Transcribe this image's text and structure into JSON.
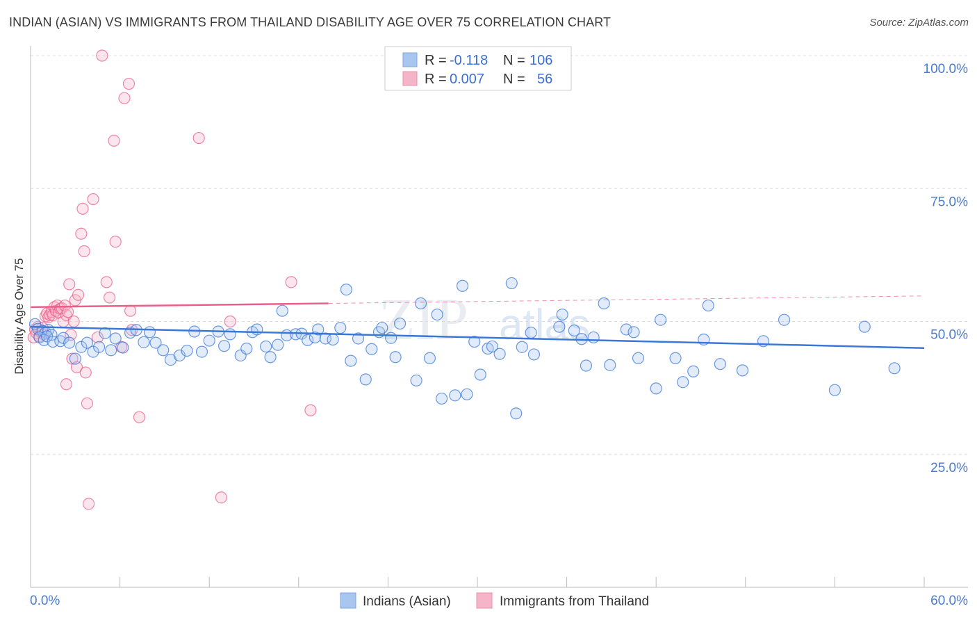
{
  "title": "INDIAN (ASIAN) VS IMMIGRANTS FROM THAILAND DISABILITY AGE OVER 75 CORRELATION CHART",
  "source": "Source: ZipAtlas.com",
  "watermark": "ZIPatlas",
  "colors": {
    "blue": "#3a78d8",
    "blue_fill": "#a9c6f0",
    "pink": "#e8608a",
    "pink_fill": "#f5b5c8",
    "tick_text": "#4a7bd0",
    "grid": "#dcdcdc"
  },
  "legend": {
    "row1": {
      "r_label": "R =",
      "r_value": "-0.118",
      "n_label": "N =",
      "n_value": "106"
    },
    "row2": {
      "r_label": "R =",
      "r_value": "0.007",
      "n_label": "N =",
      "n_value": "56"
    }
  },
  "bottom_legend": {
    "series1": "Indians (Asian)",
    "series2": "Immigrants from Thailand"
  },
  "chart_data": {
    "type": "scatter",
    "title": "INDIAN (ASIAN) VS IMMIGRANTS FROM THAILAND DISABILITY AGE OVER 75 CORRELATION CHART",
    "xlabel": "",
    "ylabel": "Disability Age Over 75",
    "xlim": [
      0,
      60
    ],
    "ylim": [
      0,
      100
    ],
    "x_tick_labels": [
      "0.0%",
      "60.0%"
    ],
    "y_ticks": [
      25,
      50,
      75,
      100
    ],
    "y_tick_labels": [
      "25.0%",
      "50.0%",
      "75.0%",
      "100.0%"
    ],
    "grid": true,
    "series": [
      {
        "name": "Indians (Asian)",
        "r": -0.118,
        "n": 106,
        "trend": {
          "x": [
            0,
            60
          ],
          "y": [
            49.0,
            45.0
          ]
        },
        "points": [
          [
            0.3,
            49.5
          ],
          [
            0.5,
            48.6
          ],
          [
            0.8,
            48.2
          ],
          [
            1.0,
            47.9
          ],
          [
            1.2,
            48.4
          ],
          [
            1.4,
            47.5
          ],
          [
            0.6,
            47.0
          ],
          [
            0.9,
            46.5
          ],
          [
            1.1,
            47.2
          ],
          [
            1.5,
            46.2
          ],
          [
            2.0,
            46.3
          ],
          [
            2.2,
            46.9
          ],
          [
            2.6,
            46.0
          ],
          [
            3.0,
            43.0
          ],
          [
            3.4,
            45.2
          ],
          [
            3.8,
            46.0
          ],
          [
            4.2,
            44.3
          ],
          [
            4.6,
            45.2
          ],
          [
            5.0,
            47.8
          ],
          [
            5.4,
            44.6
          ],
          [
            5.7,
            46.8
          ],
          [
            6.2,
            45.1
          ],
          [
            6.7,
            47.9
          ],
          [
            7.1,
            48.4
          ],
          [
            7.6,
            46.1
          ],
          [
            8.0,
            48.0
          ],
          [
            8.4,
            46.0
          ],
          [
            8.9,
            44.6
          ],
          [
            9.4,
            42.8
          ],
          [
            10.0,
            43.6
          ],
          [
            10.5,
            44.5
          ],
          [
            11.0,
            48.1
          ],
          [
            11.5,
            44.3
          ],
          [
            12.0,
            46.4
          ],
          [
            12.6,
            48.1
          ],
          [
            13.0,
            45.4
          ],
          [
            13.4,
            47.6
          ],
          [
            14.1,
            43.6
          ],
          [
            14.5,
            44.9
          ],
          [
            14.9,
            48.0
          ],
          [
            15.2,
            48.5
          ],
          [
            15.8,
            45.3
          ],
          [
            16.1,
            43.3
          ],
          [
            16.6,
            45.6
          ],
          [
            16.9,
            52.0
          ],
          [
            17.2,
            47.4
          ],
          [
            17.8,
            47.6
          ],
          [
            18.2,
            47.7
          ],
          [
            18.6,
            46.5
          ],
          [
            19.1,
            47.0
          ],
          [
            19.3,
            48.5
          ],
          [
            19.8,
            46.8
          ],
          [
            20.3,
            46.6
          ],
          [
            20.8,
            48.8
          ],
          [
            21.2,
            56.0
          ],
          [
            21.5,
            42.6
          ],
          [
            22.0,
            46.8
          ],
          [
            22.5,
            39.1
          ],
          [
            22.9,
            44.8
          ],
          [
            23.4,
            48.0
          ],
          [
            23.6,
            48.8
          ],
          [
            24.2,
            46.9
          ],
          [
            24.5,
            43.3
          ],
          [
            24.8,
            49.6
          ],
          [
            25.9,
            38.9
          ],
          [
            26.2,
            53.4
          ],
          [
            26.8,
            43.1
          ],
          [
            27.3,
            51.3
          ],
          [
            27.6,
            35.5
          ],
          [
            28.5,
            36.1
          ],
          [
            29.0,
            56.7
          ],
          [
            29.3,
            36.3
          ],
          [
            29.8,
            46.2
          ],
          [
            30.2,
            40.0
          ],
          [
            30.7,
            44.9
          ],
          [
            31.0,
            45.3
          ],
          [
            31.5,
            43.9
          ],
          [
            32.3,
            57.2
          ],
          [
            32.6,
            32.7
          ],
          [
            33.0,
            45.2
          ],
          [
            33.6,
            47.9
          ],
          [
            33.8,
            43.8
          ],
          [
            35.5,
            49.0
          ],
          [
            35.7,
            51.3
          ],
          [
            36.5,
            48.3
          ],
          [
            37.0,
            46.7
          ],
          [
            37.3,
            41.7
          ],
          [
            37.8,
            47.0
          ],
          [
            38.5,
            53.4
          ],
          [
            38.9,
            41.8
          ],
          [
            40.0,
            48.5
          ],
          [
            40.5,
            48.0
          ],
          [
            40.8,
            43.1
          ],
          [
            42.0,
            37.4
          ],
          [
            42.3,
            50.3
          ],
          [
            43.3,
            43.1
          ],
          [
            43.8,
            38.6
          ],
          [
            44.5,
            40.6
          ],
          [
            45.2,
            46.6
          ],
          [
            45.5,
            53.0
          ],
          [
            46.3,
            42.0
          ],
          [
            47.8,
            40.8
          ],
          [
            49.2,
            46.3
          ],
          [
            50.6,
            50.3
          ],
          [
            54.0,
            37.1
          ],
          [
            56.0,
            49.0
          ],
          [
            58.0,
            41.2
          ]
        ]
      },
      {
        "name": "Immigrants from Thailand",
        "r": 0.007,
        "n": 56,
        "trend": {
          "x": [
            0,
            20
          ],
          "y": [
            52.7,
            53.4
          ],
          "dashed_to": {
            "x": 60,
            "y": 54.8
          }
        },
        "points": [
          [
            0.2,
            47.0
          ],
          [
            0.3,
            48.5
          ],
          [
            0.4,
            47.8
          ],
          [
            0.5,
            49.0
          ],
          [
            0.6,
            47.2
          ],
          [
            0.7,
            48.0
          ],
          [
            0.8,
            48.8
          ],
          [
            0.9,
            47.6
          ],
          [
            1.0,
            51.0
          ],
          [
            1.1,
            51.5
          ],
          [
            1.2,
            50.8
          ],
          [
            1.3,
            51.2
          ],
          [
            1.4,
            51.8
          ],
          [
            1.5,
            51.2
          ],
          [
            1.6,
            52.7
          ],
          [
            1.7,
            52.0
          ],
          [
            1.8,
            53.0
          ],
          [
            1.9,
            51.7
          ],
          [
            2.0,
            52.4
          ],
          [
            2.1,
            52.5
          ],
          [
            2.2,
            50.0
          ],
          [
            2.3,
            53.0
          ],
          [
            2.4,
            51.2
          ],
          [
            2.5,
            51.8
          ],
          [
            2.6,
            57.0
          ],
          [
            2.7,
            47.5
          ],
          [
            2.8,
            43.0
          ],
          [
            2.9,
            50.0
          ],
          [
            3.0,
            54.0
          ],
          [
            3.1,
            41.4
          ],
          [
            3.2,
            55.0
          ],
          [
            3.4,
            66.5
          ],
          [
            3.6,
            63.2
          ],
          [
            3.5,
            71.2
          ],
          [
            3.7,
            40.4
          ],
          [
            3.8,
            34.6
          ],
          [
            3.9,
            15.7
          ],
          [
            4.2,
            73.0
          ],
          [
            4.5,
            47.0
          ],
          [
            4.8,
            100.0
          ],
          [
            5.1,
            57.4
          ],
          [
            5.3,
            54.5
          ],
          [
            5.6,
            84.0
          ],
          [
            5.7,
            65.0
          ],
          [
            6.1,
            45.2
          ],
          [
            6.3,
            92.0
          ],
          [
            6.6,
            94.7
          ],
          [
            6.7,
            52.0
          ],
          [
            6.8,
            48.4
          ],
          [
            7.3,
            32.0
          ],
          [
            11.3,
            84.5
          ],
          [
            12.8,
            16.9
          ],
          [
            13.4,
            50.0
          ],
          [
            17.5,
            57.4
          ],
          [
            18.8,
            33.3
          ],
          [
            2.4,
            38.2
          ]
        ]
      }
    ]
  }
}
